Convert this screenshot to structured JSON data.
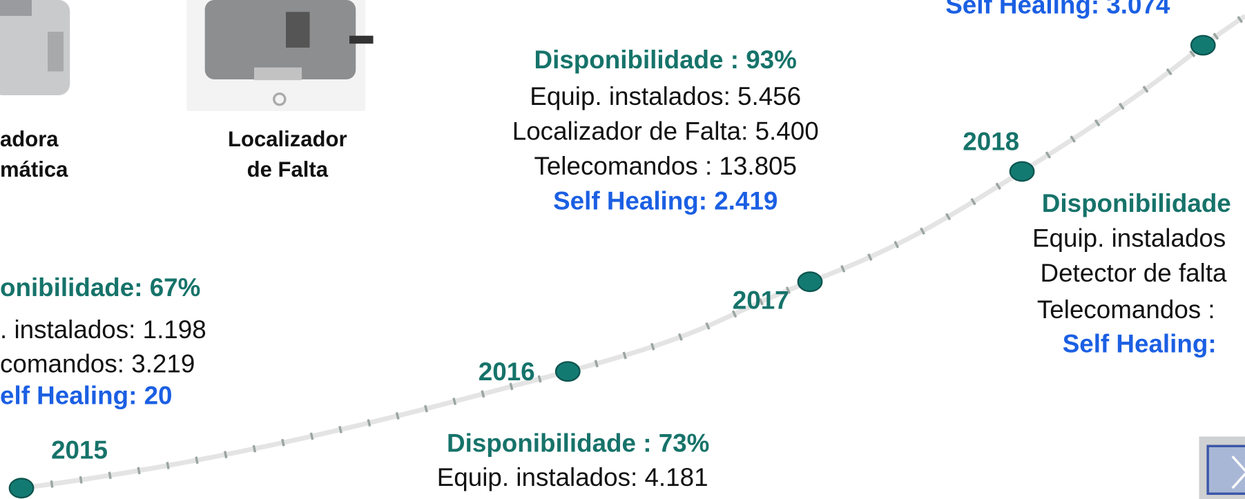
{
  "equipment": [
    {
      "lines": [
        "adora",
        "mática"
      ]
    },
    {
      "lines": [
        "Localizador",
        "de Falta"
      ]
    }
  ],
  "milestones": [
    {
      "year": "2015",
      "lines": [
        "onibilidade: 67%",
        ". instalados: 1.198",
        "comandos: 3.219",
        "elf Healing: 20"
      ]
    },
    {
      "year": "2016",
      "lines": [
        "Disponibilidade : 73%",
        "Equip. instalados: 4.181"
      ]
    },
    {
      "year": "2017",
      "lines": [
        "Disponibilidade : 93%",
        "Equip. instalados: 5.456",
        "Localizador de Falta: 5.400",
        "Telecomandos : 13.805",
        "Self Healing: 2.419"
      ]
    },
    {
      "year": "2018",
      "lines": [
        "Disponibilidade",
        "Equip. instalados",
        "Detector de falta",
        "Telecomandos :",
        "Self Healing:"
      ]
    },
    {
      "lines": [
        "Self Healing: 3.074"
      ]
    }
  ]
}
